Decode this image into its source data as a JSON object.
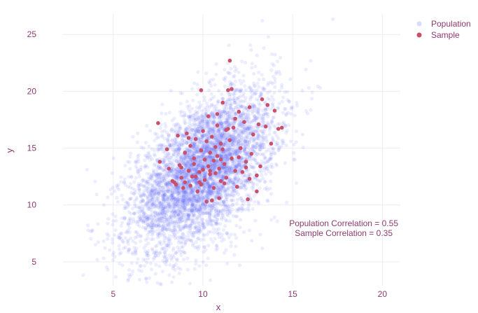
{
  "chart_data": {
    "type": "scatter",
    "title": "",
    "xlabel": "x",
    "ylabel": "y",
    "xlim": [
      2.2,
      21
    ],
    "ylim": [
      2.9,
      26.8
    ],
    "x_ticks": [
      5,
      10,
      15,
      20
    ],
    "y_ticks": [
      5,
      10,
      15,
      20,
      25
    ],
    "grid": true,
    "legend_position": "top-right",
    "population": {
      "name": "Population",
      "color": "#636efa",
      "opacity": 0.12,
      "distribution": "bivariate normal",
      "mean_x": 10,
      "mean_y": 13,
      "std_x": 2,
      "std_y": 3.5,
      "correlation": 0.55,
      "count": 5000
    },
    "series": [
      {
        "name": "Sample",
        "color": "#c8506a",
        "x": [
          7.5,
          7.6,
          8.1,
          8.3,
          8.5,
          8.6,
          8.7,
          8.8,
          8.9,
          9.0,
          9.0,
          9.1,
          9.2,
          9.3,
          9.3,
          9.4,
          9.5,
          9.5,
          9.6,
          9.7,
          9.8,
          9.9,
          9.9,
          9.9,
          10.0,
          10.0,
          10.1,
          10.1,
          10.2,
          10.2,
          10.3,
          10.3,
          10.4,
          10.4,
          10.5,
          10.5,
          10.6,
          10.6,
          10.7,
          10.7,
          10.8,
          10.8,
          10.9,
          10.9,
          11.0,
          11.0,
          11.1,
          11.1,
          11.2,
          11.2,
          11.3,
          11.3,
          11.4,
          11.5,
          11.5,
          11.6,
          11.6,
          11.7,
          11.8,
          11.9,
          12.0,
          12.1,
          12.2,
          12.3,
          12.4,
          12.5,
          12.6,
          12.7,
          12.8,
          13.0,
          13.1,
          13.3,
          13.5,
          13.6,
          13.8,
          14.0,
          14.2,
          14.4,
          8.0,
          8.4,
          8.8,
          9.2,
          9.6,
          10.8,
          11.4,
          12.0,
          12.6,
          13.2,
          9.8,
          10.4,
          11.0,
          11.8,
          12.4,
          13.0
        ],
        "y": [
          17.2,
          13.8,
          13.2,
          12.1,
          11.8,
          16.1,
          13.5,
          12.4,
          11.5,
          14.6,
          12.0,
          16.3,
          13.0,
          15.2,
          11.7,
          12.5,
          14.1,
          13.6,
          15.8,
          11.2,
          12.9,
          20.1,
          14.8,
          11.8,
          13.1,
          16.5,
          12.2,
          14.0,
          10.3,
          15.6,
          13.4,
          17.8,
          12.7,
          14.6,
          10.4,
          16.0,
          13.9,
          11.5,
          15.1,
          12.8,
          14.3,
          17.0,
          13.2,
          10.6,
          15.4,
          12.1,
          14.9,
          19.0,
          13.6,
          11.9,
          16.6,
          12.4,
          20.1,
          15.7,
          22.7,
          20.2,
          14.1,
          16.8,
          13.0,
          11.6,
          18.2,
          15.0,
          12.9,
          17.3,
          13.8,
          10.5,
          18.6,
          14.5,
          16.2,
          12.6,
          17.1,
          19.3,
          16.9,
          18.8,
          15.4,
          18.3,
          16.7,
          16.8,
          14.9,
          12.0,
          13.3,
          15.9,
          12.5,
          18.0,
          16.7,
          14.2,
          12.3,
          13.4,
          12.0,
          13.0,
          14.0,
          17.6,
          13.3,
          11.2
        ]
      }
    ],
    "annotations": [
      "Population Correlation = 0.55",
      "Sample Correlation = 0.35"
    ]
  }
}
